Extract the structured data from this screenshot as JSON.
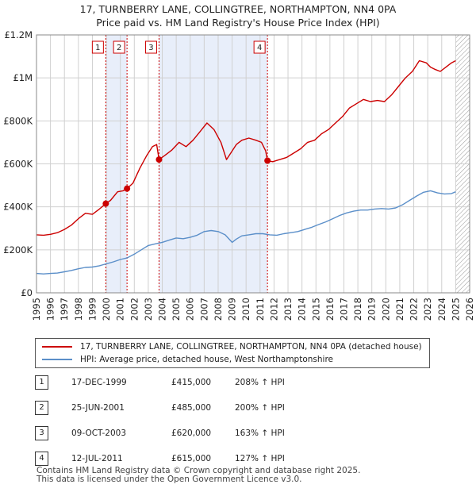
{
  "title_line1": "17, TURNBERRY LANE, COLLINGTREE, NORTHAMPTON, NN4 0PA",
  "title_line2": "Price paid vs. HM Land Registry's House Price Index (HPI)",
  "colors": {
    "property": "#cc0000",
    "hpi": "#5b8fc9",
    "grid": "#d0d0d0",
    "shade": "#e8eefa",
    "marker_line": "#cc0000"
  },
  "chart_data": {
    "type": "line",
    "xlim": [
      1995,
      2026
    ],
    "ylim": [
      0,
      1200000
    ],
    "y_ticks": [
      {
        "value": 0,
        "label": "£0"
      },
      {
        "value": 200000,
        "label": "£200K"
      },
      {
        "value": 400000,
        "label": "£400K"
      },
      {
        "value": 600000,
        "label": "£600K"
      },
      {
        "value": 800000,
        "label": "£800K"
      },
      {
        "value": 1000000,
        "label": "£1M"
      },
      {
        "value": 1200000,
        "label": "£1.2M"
      }
    ],
    "x_ticks": [
      "1995",
      "1996",
      "1997",
      "1998",
      "1999",
      "2000",
      "2001",
      "2002",
      "2003",
      "2004",
      "2005",
      "2006",
      "2007",
      "2008",
      "2009",
      "2010",
      "2011",
      "2012",
      "2013",
      "2014",
      "2015",
      "2016",
      "2017",
      "2018",
      "2019",
      "2020",
      "2021",
      "2022",
      "2023",
      "2024",
      "2025",
      "2026"
    ],
    "shaded_ranges": [
      [
        1999.96,
        2001.48
      ],
      [
        2003.77,
        2011.53
      ]
    ],
    "hatched_from": 2025.0,
    "series": [
      {
        "name": "17, TURNBERRY LANE, COLLINGTREE, NORTHAMPTON, NN4 0PA (detached house)",
        "x": [
          1995.0,
          1995.5,
          1996.0,
          1996.5,
          1997.0,
          1997.5,
          1998.0,
          1998.5,
          1999.0,
          1999.5,
          1999.96,
          2000.3,
          2000.8,
          2001.2,
          2001.48,
          2001.9,
          2002.4,
          2002.9,
          2003.3,
          2003.6,
          2003.77,
          2004.2,
          2004.7,
          2005.2,
          2005.7,
          2006.2,
          2006.7,
          2007.2,
          2007.7,
          2008.2,
          2008.6,
          2009.0,
          2009.3,
          2009.7,
          2010.2,
          2010.7,
          2011.1,
          2011.4,
          2011.53,
          2011.9,
          2012.4,
          2012.9,
          2013.4,
          2013.9,
          2014.4,
          2014.9,
          2015.4,
          2015.9,
          2016.4,
          2016.9,
          2017.4,
          2017.9,
          2018.4,
          2018.9,
          2019.4,
          2019.9,
          2020.4,
          2020.9,
          2021.4,
          2021.9,
          2022.4,
          2022.9,
          2023.2,
          2023.5,
          2023.9,
          2024.3,
          2024.7,
          2025.0
        ],
        "values": [
          270000,
          268000,
          272000,
          280000,
          295000,
          315000,
          345000,
          370000,
          365000,
          390000,
          415000,
          430000,
          470000,
          475000,
          485000,
          510000,
          580000,
          640000,
          680000,
          690000,
          620000,
          640000,
          665000,
          700000,
          680000,
          710000,
          750000,
          790000,
          760000,
          700000,
          620000,
          660000,
          690000,
          710000,
          720000,
          710000,
          700000,
          660000,
          615000,
          610000,
          620000,
          630000,
          650000,
          670000,
          700000,
          710000,
          740000,
          760000,
          790000,
          820000,
          860000,
          880000,
          900000,
          890000,
          895000,
          890000,
          920000,
          960000,
          1000000,
          1030000,
          1080000,
          1070000,
          1050000,
          1040000,
          1030000,
          1050000,
          1070000,
          1080000
        ]
      },
      {
        "name": "HPI: Average price, detached house, West Northamptonshire",
        "x": [
          1995.0,
          1995.5,
          1996.0,
          1996.5,
          1997.0,
          1997.5,
          1998.0,
          1998.5,
          1999.0,
          1999.5,
          2000.0,
          2000.5,
          2001.0,
          2001.5,
          2002.0,
          2002.5,
          2003.0,
          2003.5,
          2004.0,
          2004.5,
          2005.0,
          2005.5,
          2006.0,
          2006.5,
          2007.0,
          2007.5,
          2008.0,
          2008.5,
          2009.0,
          2009.3,
          2009.7,
          2010.2,
          2010.7,
          2011.2,
          2011.7,
          2012.2,
          2012.7,
          2013.2,
          2013.7,
          2014.2,
          2014.7,
          2015.2,
          2015.7,
          2016.2,
          2016.7,
          2017.2,
          2017.7,
          2018.2,
          2018.7,
          2019.2,
          2019.7,
          2020.2,
          2020.7,
          2021.2,
          2021.7,
          2022.2,
          2022.7,
          2023.2,
          2023.7,
          2024.2,
          2024.7,
          2025.0
        ],
        "values": [
          90000,
          88000,
          90000,
          92000,
          98000,
          104000,
          112000,
          118000,
          120000,
          126000,
          135000,
          144000,
          155000,
          163000,
          180000,
          200000,
          220000,
          228000,
          235000,
          245000,
          255000,
          252000,
          258000,
          268000,
          285000,
          290000,
          285000,
          270000,
          235000,
          250000,
          265000,
          270000,
          275000,
          275000,
          270000,
          268000,
          275000,
          280000,
          285000,
          295000,
          305000,
          318000,
          330000,
          345000,
          360000,
          372000,
          380000,
          385000,
          385000,
          390000,
          392000,
          390000,
          395000,
          410000,
          430000,
          450000,
          468000,
          475000,
          465000,
          460000,
          462000,
          470000
        ]
      }
    ],
    "sale_markers": [
      {
        "label": "1",
        "x": 1999.96,
        "value": 415000
      },
      {
        "label": "2",
        "x": 2001.48,
        "value": 485000
      },
      {
        "label": "3",
        "x": 2003.77,
        "value": 620000
      },
      {
        "label": "4",
        "x": 2011.53,
        "value": 615000
      }
    ]
  },
  "legend": {
    "property_label": "17, TURNBERRY LANE, COLLINGTREE, NORTHAMPTON, NN4 0PA (detached house)",
    "hpi_label": "HPI: Average price, detached house, West Northamptonshire"
  },
  "sales": [
    {
      "num": "1",
      "date": "17-DEC-1999",
      "price": "£415,000",
      "hpi": "208% ↑ HPI"
    },
    {
      "num": "2",
      "date": "25-JUN-2001",
      "price": "£485,000",
      "hpi": "200% ↑ HPI"
    },
    {
      "num": "3",
      "date": "09-OCT-2003",
      "price": "£620,000",
      "hpi": "163% ↑ HPI"
    },
    {
      "num": "4",
      "date": "12-JUL-2011",
      "price": "£615,000",
      "hpi": "127% ↑ HPI"
    }
  ],
  "footer_line1": "Contains HM Land Registry data © Crown copyright and database right 2025.",
  "footer_line2": "This data is licensed under the Open Government Licence v3.0."
}
